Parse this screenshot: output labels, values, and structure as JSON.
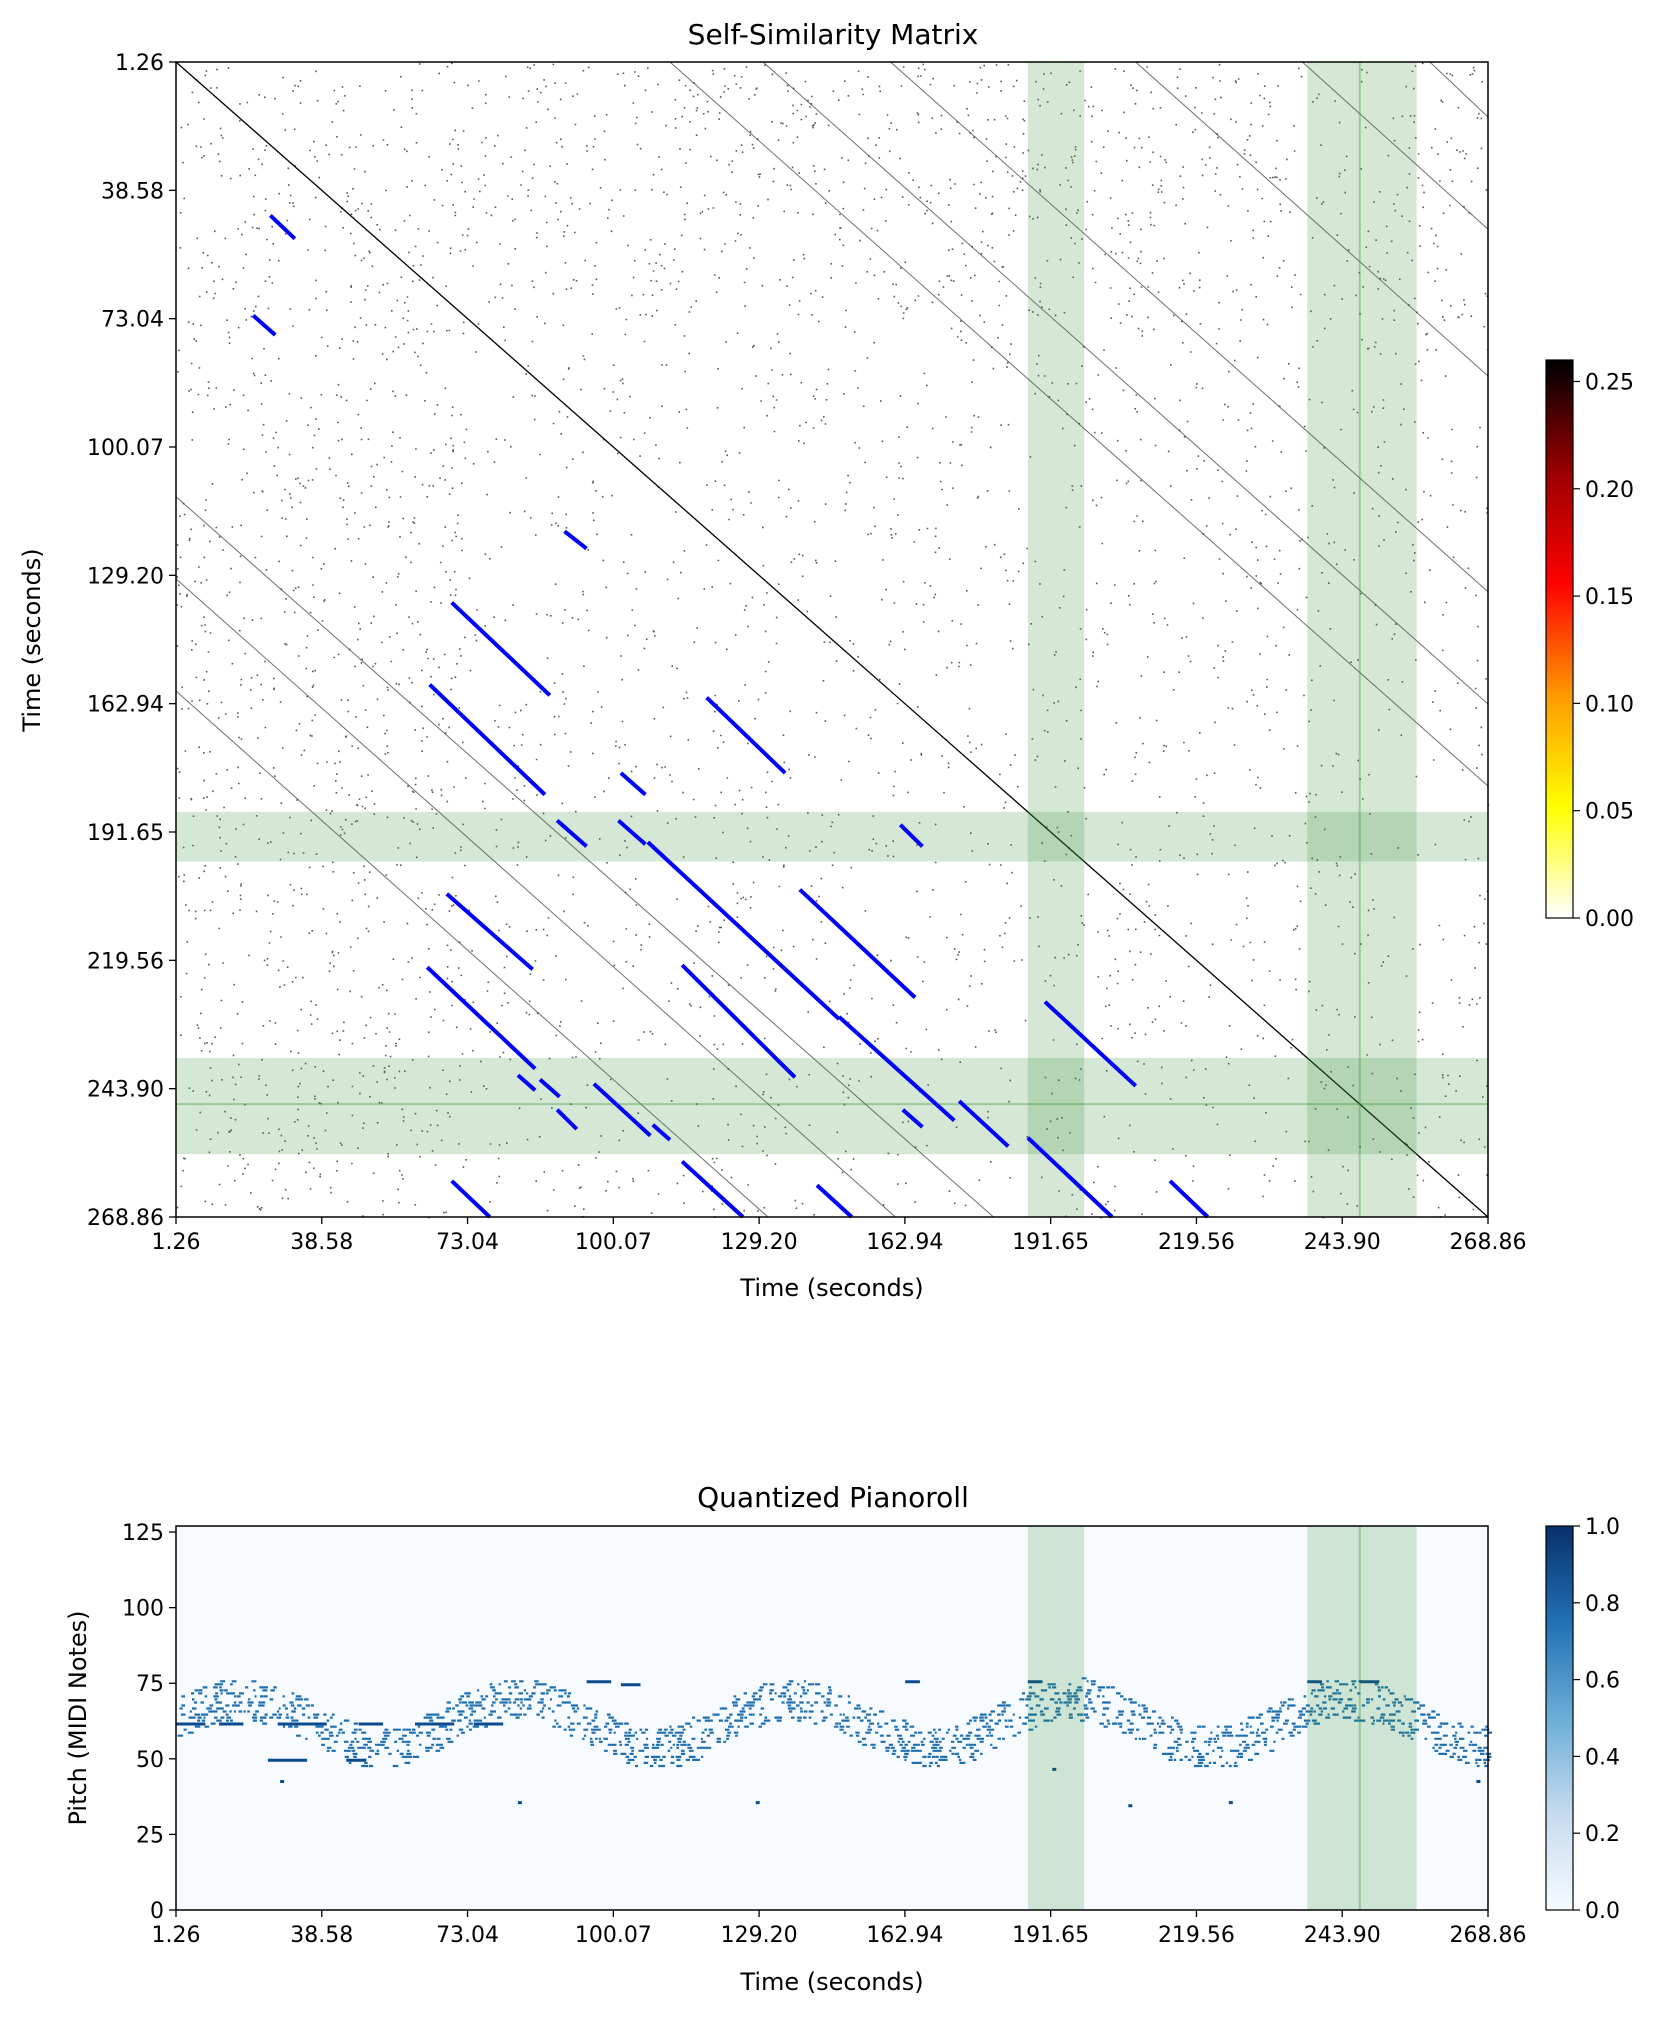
{
  "chart_data": [
    {
      "type": "heatmap",
      "title": "Self-Similarity Matrix",
      "xlabel": "Time (seconds)",
      "ylabel": "Time (seconds)",
      "x_tick_labels": [
        "1.26",
        "38.58",
        "73.04",
        "100.07",
        "129.20",
        "162.94",
        "191.65",
        "219.56",
        "243.90",
        "268.86"
      ],
      "y_tick_labels": [
        "1.26",
        "38.58",
        "73.04",
        "100.07",
        "129.20",
        "162.94",
        "191.65",
        "219.56",
        "243.90",
        "268.86"
      ],
      "xlim": [
        1.26,
        268.86
      ],
      "ylim": [
        268.86,
        1.26
      ],
      "colormap": "hot_r",
      "colorbar": {
        "range": [
          0.0,
          0.26
        ],
        "ticks": [
          "0.00",
          "0.05",
          "0.10",
          "0.15",
          "0.20",
          "0.25"
        ],
        "colors": [
          "#ffffff",
          "#ffff00",
          "#ff9900",
          "#ff0000",
          "#990000",
          "#000000"
        ]
      },
      "diagonal": {
        "from": 1.26,
        "to": 268.86,
        "color": "#000000"
      },
      "highlight_color": "#2e8b2e",
      "highlight_opacity": 0.2,
      "highlighted_regions": [
        {
          "start": 175.0,
          "end": 186.5
        },
        {
          "start": 232.0,
          "end": 254.3
        }
      ],
      "region_boundary": 242.7,
      "repeated_segments_color": "#0000ff",
      "repeated_segments": [
        {
          "x": [
            20.5,
            25.5
          ],
          "y": [
            36.8,
            42.2
          ]
        },
        {
          "x": [
            17.0,
            21.5
          ],
          "y": [
            60.0,
            64.5
          ]
        },
        {
          "x": [
            80.5,
            85.0
          ],
          "y": [
            110.0,
            114.0
          ]
        },
        {
          "x": [
            57.5,
            77.5
          ],
          "y": [
            126.5,
            148.0
          ]
        },
        {
          "x": [
            53.0,
            76.5
          ],
          "y": [
            145.5,
            171.0
          ]
        },
        {
          "x": [
            109.5,
            125.5
          ],
          "y": [
            148.5,
            166.0
          ]
        },
        {
          "x": [
            92.0,
            97.0
          ],
          "y": [
            166.0,
            171.0
          ]
        },
        {
          "x": [
            79.0,
            85.0
          ],
          "y": [
            177.0,
            183.0
          ]
        },
        {
          "x": [
            91.5,
            97.0
          ],
          "y": [
            177.0,
            182.5
          ]
        },
        {
          "x": [
            97.5,
            136.5
          ],
          "y": [
            182.0,
            223.0
          ]
        },
        {
          "x": [
            149.0,
            153.5
          ],
          "y": [
            178.0,
            183.0
          ]
        },
        {
          "x": [
            128.5,
            152.0
          ],
          "y": [
            193.0,
            218.0
          ]
        },
        {
          "x": [
            56.5,
            74.0
          ],
          "y": [
            194.0,
            211.5
          ]
        },
        {
          "x": [
            52.5,
            74.5
          ],
          "y": [
            211.0,
            234.5
          ]
        },
        {
          "x": [
            104.5,
            127.5
          ],
          "y": [
            210.5,
            236.5
          ]
        },
        {
          "x": [
            136.5,
            160.0
          ],
          "y": [
            222.5,
            246.5
          ]
        },
        {
          "x": [
            71.0,
            74.5
          ],
          "y": [
            236.0,
            239.5
          ]
        },
        {
          "x": [
            75.5,
            79.5
          ],
          "y": [
            237.0,
            241.0
          ]
        },
        {
          "x": [
            86.5,
            98.0
          ],
          "y": [
            238.0,
            250.0
          ]
        },
        {
          "x": [
            79.0,
            83.0
          ],
          "y": [
            244.0,
            248.5
          ]
        },
        {
          "x": [
            98.5,
            102.0
          ],
          "y": [
            247.5,
            251.0
          ]
        },
        {
          "x": [
            149.5,
            153.5
          ],
          "y": [
            244.0,
            248.0
          ]
        },
        {
          "x": [
            161.0,
            171.0
          ],
          "y": [
            242.0,
            252.5
          ]
        },
        {
          "x": [
            178.5,
            197.0
          ],
          "y": [
            219.0,
            238.5
          ]
        },
        {
          "x": [
            175.0,
            204.0
          ],
          "y": [
            250.5,
            281.5
          ]
        },
        {
          "x": [
            104.5,
            131.0
          ],
          "y": [
            256.0,
            283.5
          ]
        },
        {
          "x": [
            57.5,
            76.5
          ],
          "y": [
            260.5,
            281.0
          ]
        },
        {
          "x": [
            132.0,
            145.0
          ],
          "y": [
            261.5,
            275.0
          ]
        },
        {
          "x": [
            204.0,
            221.0
          ],
          "y": [
            260.5,
            279.0
          ]
        }
      ],
      "off_diagonal_streaks": [
        {
          "x": [
            102.0,
            268.86
          ],
          "y": [
            1.26,
            169.0
          ]
        },
        {
          "x": [
            121.0,
            268.86
          ],
          "y": [
            1.26,
            150.0
          ]
        },
        {
          "x": [
            147.0,
            268.86
          ],
          "y": [
            1.26,
            124.0
          ]
        },
        {
          "x": [
            197.0,
            268.86
          ],
          "y": [
            1.26,
            74.0
          ]
        },
        {
          "x": [
            231.0,
            268.86
          ],
          "y": [
            1.26,
            40.0
          ]
        },
        {
          "x": [
            257.0,
            268.86
          ],
          "y": [
            1.26,
            14.0
          ]
        },
        {
          "x": [
            1.26,
            168.0
          ],
          "y": [
            102.0,
            268.86
          ]
        },
        {
          "x": [
            1.26,
            148.0
          ],
          "y": [
            121.0,
            268.86
          ]
        },
        {
          "x": [
            1.26,
            122.0
          ],
          "y": [
            147.0,
            268.86
          ]
        }
      ]
    },
    {
      "type": "heatmap",
      "title": "Quantized Pianoroll",
      "xlabel": "Time (seconds)",
      "ylabel": "Pitch (MIDI Notes)",
      "x_tick_labels": [
        "1.26",
        "38.58",
        "73.04",
        "100.07",
        "129.20",
        "162.94",
        "191.65",
        "219.56",
        "243.90",
        "268.86"
      ],
      "y_ticks": [
        0,
        25,
        50,
        75,
        100,
        125
      ],
      "xlim": [
        1.26,
        268.86
      ],
      "ylim": [
        0,
        127
      ],
      "colormap": "Blues",
      "colorbar": {
        "range": [
          0.0,
          1.0
        ],
        "ticks": [
          "0.0",
          "0.2",
          "0.4",
          "0.6",
          "0.8",
          "1.0"
        ],
        "colors": [
          "#f7fbff",
          "#c6dbef",
          "#6baed6",
          "#2171b5",
          "#08306b"
        ]
      },
      "note_color": "#1f6fb0",
      "sustained_note_color": "#0b4a8f",
      "highlight_color": "#2e8b2e",
      "highlight_opacity": 0.2,
      "highlighted_regions": [
        {
          "start": 175.0,
          "end": 186.5
        },
        {
          "start": 232.0,
          "end": 254.3
        }
      ],
      "region_boundary": 242.7,
      "pitch_range_typical": [
        48,
        80
      ],
      "outlier_notes": [
        {
          "t": 22.5,
          "pitch": 43
        },
        {
          "t": 71.0,
          "pitch": 36
        },
        {
          "t": 119.5,
          "pitch": 36
        },
        {
          "t": 180.0,
          "pitch": 47
        },
        {
          "t": 195.5,
          "pitch": 35
        },
        {
          "t": 216.0,
          "pitch": 36
        },
        {
          "t": 266.5,
          "pitch": 43
        }
      ]
    }
  ]
}
